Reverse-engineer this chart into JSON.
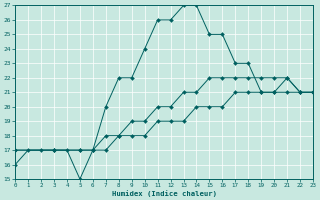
{
  "xlabel": "Humidex (Indice chaleur)",
  "xlim": [
    0,
    23
  ],
  "ylim": [
    15,
    27
  ],
  "xticks": [
    0,
    1,
    2,
    3,
    4,
    5,
    6,
    7,
    8,
    9,
    10,
    11,
    12,
    13,
    14,
    15,
    16,
    17,
    18,
    19,
    20,
    21,
    22,
    23
  ],
  "yticks": [
    15,
    16,
    17,
    18,
    19,
    20,
    21,
    22,
    23,
    24,
    25,
    26,
    27
  ],
  "bg_color": "#c8e8e0",
  "line_color": "#006060",
  "grid_color": "#ffffff",
  "lines": [
    {
      "x": [
        0,
        1,
        2,
        3,
        4,
        5,
        6,
        7,
        8,
        9,
        10,
        11,
        12,
        13,
        14,
        15,
        16,
        17,
        18,
        19,
        20,
        21,
        22,
        23
      ],
      "y": [
        16,
        17,
        17,
        17,
        17,
        15,
        17,
        20,
        22,
        22,
        24,
        26,
        26,
        27,
        27,
        25,
        25,
        23,
        23,
        21,
        21,
        22,
        21,
        21
      ]
    },
    {
      "x": [
        0,
        3,
        5,
        6,
        7,
        8,
        9,
        10,
        11,
        12,
        13,
        14,
        15,
        16,
        17,
        18,
        19,
        20,
        21,
        22,
        23
      ],
      "y": [
        17,
        17,
        17,
        17,
        18,
        18,
        19,
        19,
        20,
        20,
        21,
        21,
        22,
        22,
        22,
        22,
        22,
        22,
        22,
        21,
        21
      ]
    },
    {
      "x": [
        0,
        3,
        5,
        6,
        7,
        8,
        9,
        10,
        11,
        12,
        13,
        14,
        15,
        16,
        17,
        18,
        19,
        20,
        21,
        22,
        23
      ],
      "y": [
        17,
        17,
        17,
        17,
        17,
        18,
        18,
        18,
        19,
        19,
        19,
        20,
        20,
        20,
        21,
        21,
        21,
        21,
        21,
        21,
        21
      ]
    }
  ]
}
